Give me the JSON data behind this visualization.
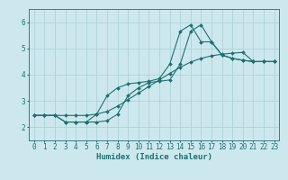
{
  "xlabel": "Humidex (Indice chaleur)",
  "bg_color": "#cce8ee",
  "grid_color": "#aacdd6",
  "line_color": "#1e7070",
  "xlim": [
    -0.5,
    23.5
  ],
  "ylim": [
    1.5,
    6.5
  ],
  "yticks": [
    2,
    3,
    4,
    5,
    6
  ],
  "xticks": [
    0,
    1,
    2,
    3,
    4,
    5,
    6,
    7,
    8,
    9,
    10,
    11,
    12,
    13,
    14,
    15,
    16,
    17,
    18,
    19,
    20,
    21,
    22,
    23
  ],
  "line1_x": [
    0,
    1,
    2,
    3,
    4,
    5,
    6,
    7,
    8,
    9,
    10,
    11,
    12,
    13,
    14,
    15,
    16,
    17,
    18,
    19,
    20,
    21,
    22,
    23
  ],
  "line1_y": [
    2.45,
    2.45,
    2.45,
    2.2,
    2.2,
    2.2,
    2.2,
    2.25,
    2.5,
    3.2,
    3.5,
    3.7,
    3.75,
    3.8,
    4.4,
    5.65,
    5.9,
    5.25,
    4.75,
    4.62,
    4.55,
    4.5,
    4.5,
    4.5
  ],
  "line2_x": [
    0,
    1,
    2,
    3,
    4,
    5,
    6,
    7,
    8,
    9,
    10,
    11,
    12,
    13,
    14,
    15,
    16,
    17,
    18,
    19,
    20,
    21,
    22,
    23
  ],
  "line2_y": [
    2.45,
    2.45,
    2.45,
    2.2,
    2.2,
    2.2,
    2.5,
    3.2,
    3.5,
    3.65,
    3.7,
    3.75,
    3.85,
    4.4,
    5.65,
    5.9,
    5.25,
    5.25,
    4.75,
    4.62,
    4.55,
    4.5,
    4.5,
    4.5
  ],
  "line3_x": [
    0,
    1,
    2,
    3,
    4,
    5,
    6,
    7,
    8,
    9,
    10,
    11,
    12,
    13,
    14,
    15,
    16,
    17,
    18,
    19,
    20,
    21,
    22,
    23
  ],
  "line3_y": [
    2.45,
    2.45,
    2.45,
    2.45,
    2.45,
    2.45,
    2.5,
    2.6,
    2.8,
    3.05,
    3.3,
    3.55,
    3.8,
    4.05,
    4.28,
    4.48,
    4.62,
    4.72,
    4.78,
    4.82,
    4.85,
    4.5,
    4.5,
    4.5
  ],
  "marker": "D",
  "markersize": 2.0,
  "linewidth": 0.8,
  "tick_fontsize": 5.5,
  "xlabel_fontsize": 6.5
}
